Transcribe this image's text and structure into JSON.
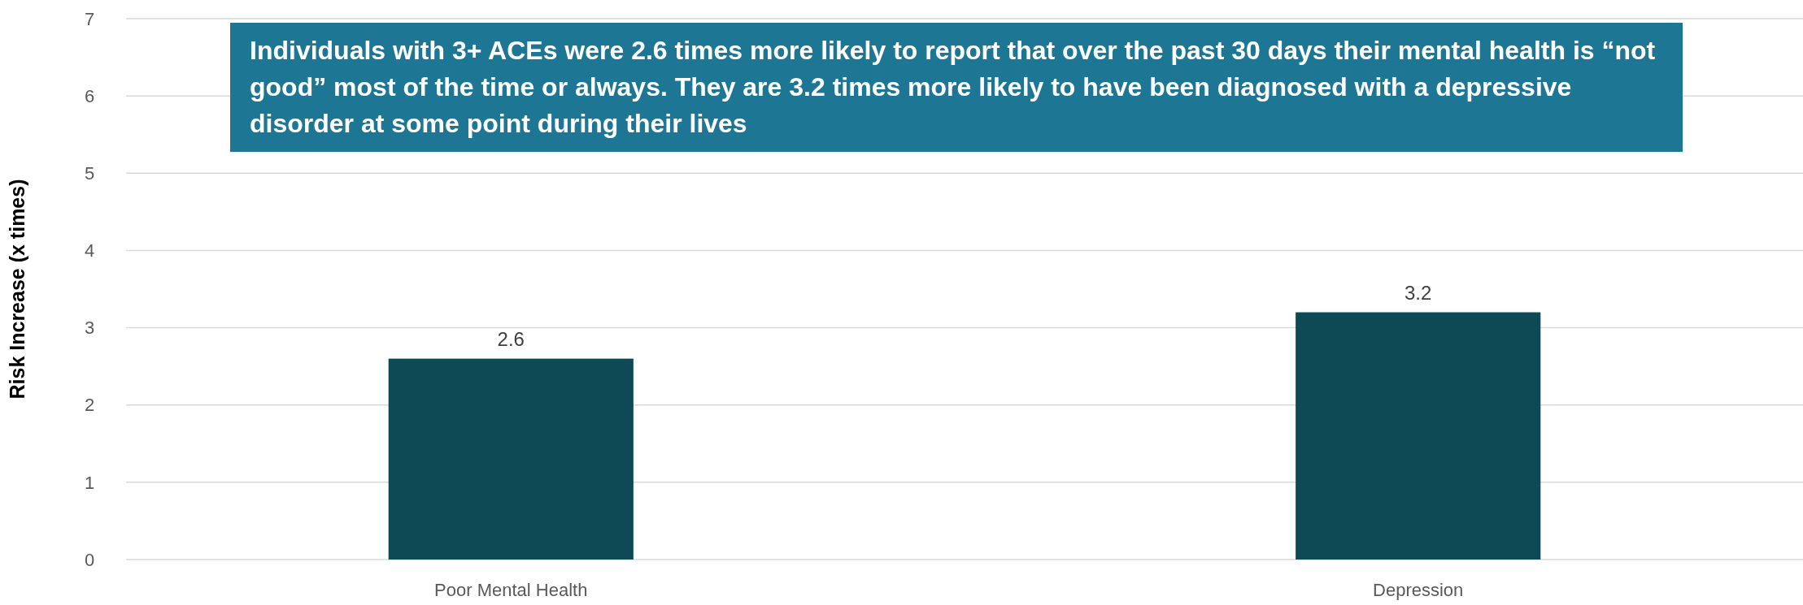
{
  "chart_data": {
    "type": "bar",
    "ylabel": "Risk Increase (x times)",
    "categories": [
      "Poor Mental Health",
      "Depression"
    ],
    "values": [
      2.6,
      3.2
    ],
    "color": "#0e4a56",
    "ylim": [
      0,
      7
    ],
    "yticks": [
      0,
      1,
      2,
      3,
      4,
      5,
      6,
      7
    ],
    "grid": "y",
    "data_labels": true,
    "annotations": [
      "Individuals with 3+ ACEs were 2.6 times more likely to report that over the past 30 days their mental health is “not good” most of the time or always.  They are 3.2 times more likely to have been diagnosed with a depressive disorder at some point during their lives"
    ]
  }
}
